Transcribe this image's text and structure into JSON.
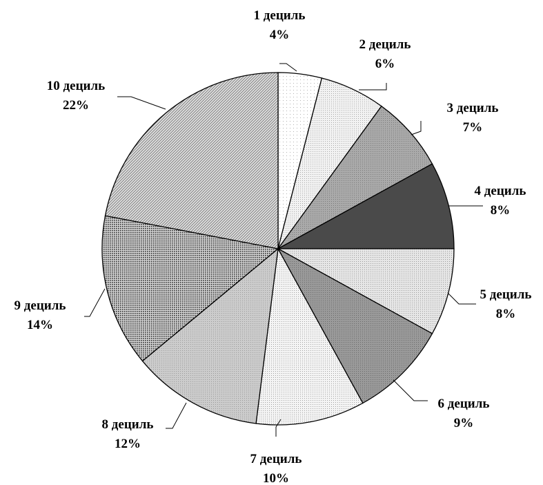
{
  "chart_data": {
    "type": "pie",
    "title": "",
    "categories": [
      "1 дециль",
      "2 дециль",
      "3 дециль",
      "4 дециль",
      "5 дециль",
      "6 дециль",
      "7 дециль",
      "8 дециль",
      "9 дециль",
      "10 дециль"
    ],
    "values": [
      4,
      6,
      7,
      8,
      8,
      9,
      10,
      12,
      14,
      22
    ],
    "value_labels": [
      "4%",
      "6%",
      "7%",
      "8%",
      "8%",
      "9%",
      "10%",
      "12%",
      "14%",
      "22%"
    ],
    "unit": "%",
    "legend": "none",
    "direction": "clockwise",
    "start_angle": "12 o'clock",
    "slice_fills": [
      {
        "base": "#ffffff",
        "pattern": "dots-sparse",
        "ink": "#b0b0b0"
      },
      {
        "base": "#f2f2f2",
        "pattern": "dots",
        "ink": "#a8a8a8"
      },
      {
        "base": "#aaaaaa",
        "pattern": "dots",
        "ink": "#7a7a7a"
      },
      {
        "base": "#4a4a4a",
        "pattern": "solid",
        "ink": "#4a4a4a"
      },
      {
        "base": "#e6e6e6",
        "pattern": "dots",
        "ink": "#9a9a9a"
      },
      {
        "base": "#9a9a9a",
        "pattern": "dots",
        "ink": "#6a6a6a"
      },
      {
        "base": "#f4f4f4",
        "pattern": "dots",
        "ink": "#a0a0a0"
      },
      {
        "base": "#cccccc",
        "pattern": "dots",
        "ink": "#9a9a9a"
      },
      {
        "base": "#d2d2d2",
        "pattern": "grid",
        "ink": "#333333"
      },
      {
        "base": "#e0e0e0",
        "pattern": "diagonal",
        "ink": "#777777"
      }
    ]
  }
}
